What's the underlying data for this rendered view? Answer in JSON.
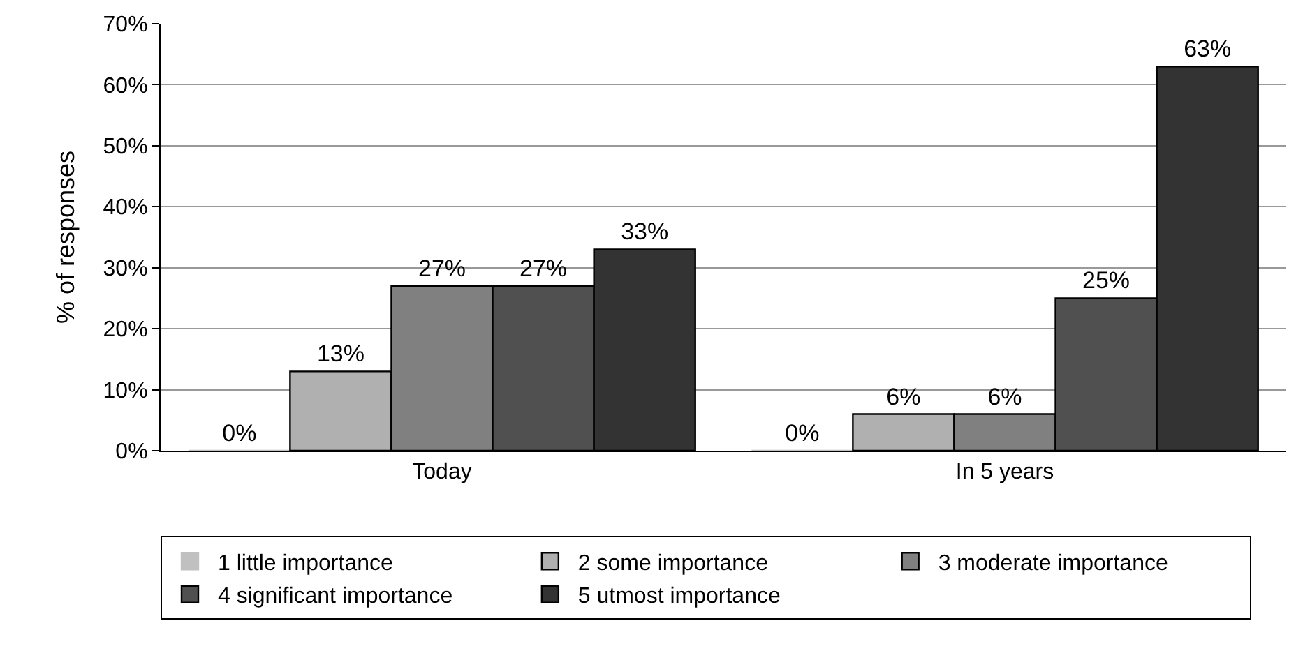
{
  "chart_data": {
    "type": "bar",
    "ylabel": "% of responses",
    "categories": [
      "Today",
      "In 5 years"
    ],
    "series": [
      {
        "name": "1 little importance",
        "color": "#c0c0c0",
        "values": [
          0,
          0
        ],
        "value_labels": [
          "0%",
          "0%"
        ]
      },
      {
        "name": "2 some importance",
        "color": "#b0b0b0",
        "values": [
          13,
          6
        ],
        "value_labels": [
          "13%",
          "6%"
        ]
      },
      {
        "name": "3 moderate importance",
        "color": "#808080",
        "values": [
          27,
          6
        ],
        "value_labels": [
          "27%",
          "6%"
        ]
      },
      {
        "name": "4 significant importance",
        "color": "#505050",
        "values": [
          27,
          25
        ],
        "value_labels": [
          "27%",
          "25%"
        ]
      },
      {
        "name": "5 utmost importance",
        "color": "#333333",
        "values": [
          33,
          63
        ],
        "value_labels": [
          "33%",
          "63%"
        ]
      }
    ],
    "ylim": [
      0,
      70
    ],
    "yticks": [
      {
        "value": 0,
        "label": "0%"
      },
      {
        "value": 10,
        "label": "10%"
      },
      {
        "value": 20,
        "label": "20%"
      },
      {
        "value": 30,
        "label": "30%"
      },
      {
        "value": 40,
        "label": "40%"
      },
      {
        "value": 50,
        "label": "50%"
      },
      {
        "value": 60,
        "label": "60%"
      },
      {
        "value": 70,
        "label": "70%"
      }
    ],
    "grid": "y",
    "legend": "bottom"
  }
}
